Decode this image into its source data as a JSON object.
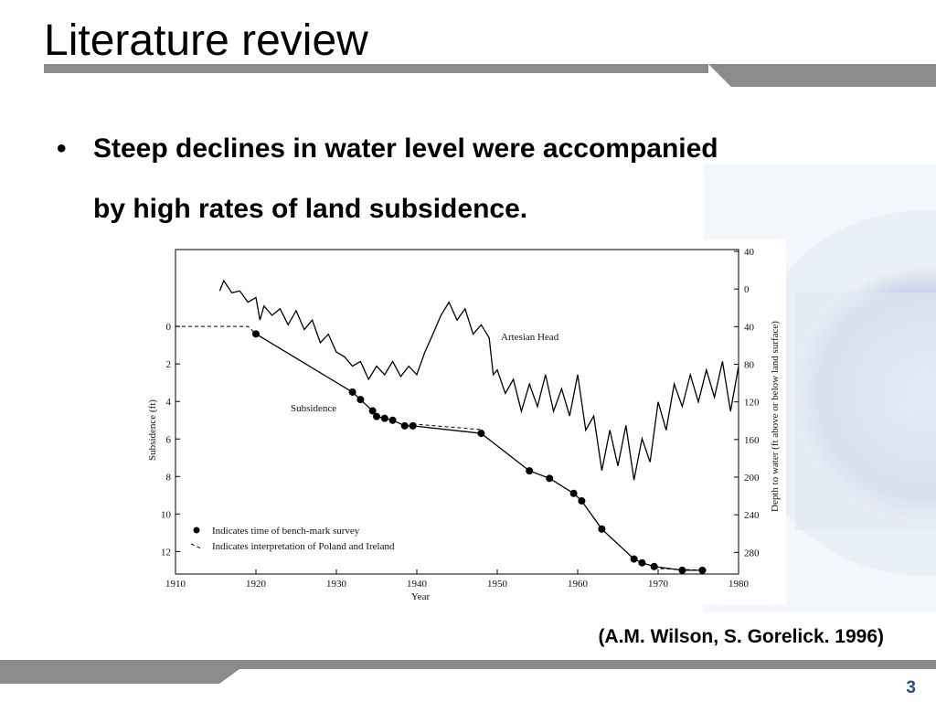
{
  "header": {
    "title": "Literature review"
  },
  "bullets": [
    "Steep declines in water level were accompanied",
    "by high rates of land subsidence."
  ],
  "citation": "(A.M. Wilson, S. Gorelick. 1996)",
  "page_number": "3",
  "chart_data": {
    "type": "line",
    "xlabel": "Year",
    "ylabel": "Subsidence (ft)",
    "y2label": "Depth to water (ft above or below land surface)",
    "xlim": [
      1910,
      1980
    ],
    "xticks": [
      1910,
      1920,
      1930,
      1940,
      1950,
      1960,
      1970,
      1980
    ],
    "ylim": [
      13.2,
      -4.1
    ],
    "yticks": [
      0,
      2,
      4,
      6,
      8,
      10,
      12
    ],
    "y2lim": [
      303,
      -42
    ],
    "y2ticks": [
      {
        "value": -40,
        "label": "40"
      },
      0,
      40,
      80,
      120,
      160,
      200,
      240,
      280
    ],
    "marker_legend": "Indicates time of bench-mark survey",
    "series": [
      {
        "name": "Subsidence",
        "color": "#000000",
        "markers": true,
        "dashed": false,
        "x": [
          1920,
          1932,
          1933,
          1934.5,
          1935,
          1936,
          1937,
          1938.5,
          1939.5,
          1948,
          1954,
          1956.5,
          1959.5,
          1960.5,
          1963,
          1967,
          1968,
          1969.5,
          1973,
          1975.5
        ],
        "values": [
          0.4,
          3.5,
          3.9,
          4.5,
          4.8,
          4.9,
          5.0,
          5.3,
          5.3,
          5.7,
          7.7,
          8.1,
          8.9,
          9.3,
          10.8,
          12.4,
          12.6,
          12.8,
          13.0,
          13.0
        ]
      },
      {
        "name": "Indicates interpretation of Poland and Ireland",
        "color": "#000000",
        "markers": false,
        "dashed": true,
        "x": [
          1910,
          1919,
          1920,
          1930,
          1939.5,
          1948,
          1960,
          1969.5,
          1976
        ],
        "values": [
          0,
          0,
          0.4,
          null,
          5.2,
          5.5,
          null,
          12.9,
          13.0
        ]
      },
      {
        "name": "Artesian Head",
        "color": "#000000",
        "markers": false,
        "dashed": false,
        "axis": "y2",
        "x": [
          1915.5,
          1916,
          1917,
          1918,
          1919,
          1920,
          1920.5,
          1921,
          1922,
          1923,
          1924,
          1925,
          1926,
          1927,
          1928,
          1929,
          1930,
          1931,
          1932,
          1933,
          1934,
          1935,
          1936,
          1937,
          1938,
          1939,
          1940,
          1941,
          1942,
          1943,
          1944,
          1945,
          1946,
          1947,
          1948,
          1949,
          1949.5,
          1950,
          1951,
          1952,
          1953,
          1954,
          1955,
          1956,
          1957,
          1958,
          1959,
          1960,
          1961,
          1962,
          1963,
          1964,
          1965,
          1966,
          1967,
          1968,
          1969,
          1970,
          1971,
          1972,
          1973,
          1974,
          1975,
          1976,
          1977,
          1978,
          1979,
          1980
        ],
        "values": [
          2,
          -9,
          4,
          2,
          14,
          9,
          33,
          18,
          28,
          21,
          38,
          23,
          43,
          33,
          57,
          48,
          67,
          72,
          82,
          77,
          96,
          82,
          91,
          77,
          93,
          82,
          91,
          67,
          48,
          28,
          14,
          33,
          21,
          48,
          38,
          52,
          91,
          86,
          111,
          96,
          130,
          101,
          125,
          91,
          130,
          106,
          135,
          91,
          150,
          135,
          193,
          150,
          188,
          145,
          203,
          159,
          184,
          120,
          150,
          101,
          125,
          91,
          120,
          86,
          115,
          77,
          130,
          82
        ]
      }
    ]
  }
}
